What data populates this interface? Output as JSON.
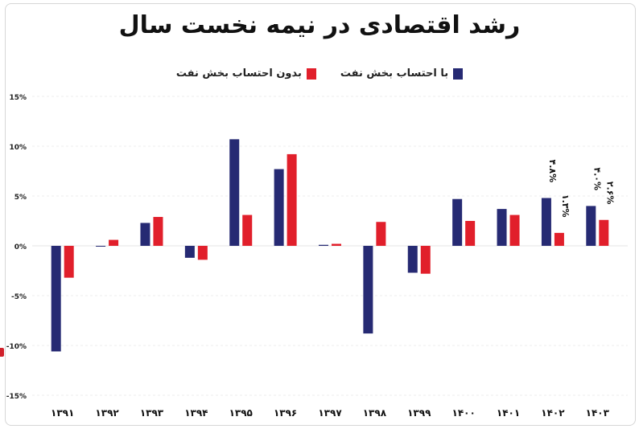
{
  "title": "رشد اقتصادی در نیمه نخست سال",
  "legend": [
    {
      "label": "با احتساب بخش نفت",
      "color": "#262a73"
    },
    {
      "label": "بدون احتساب بخش نفت",
      "color": "#e11f2b"
    }
  ],
  "chart_data": {
    "type": "bar",
    "title": "رشد اقتصادی در نیمه نخست سال",
    "categories": [
      "۱۳۹۱",
      "۱۳۹۲",
      "۱۳۹۳",
      "۱۳۹۴",
      "۱۳۹۵",
      "۱۳۹۶",
      "۱۳۹۷",
      "۱۳۹۸",
      "۱۳۹۹",
      "۱۴۰۰",
      "۱۴۰۱",
      "۱۴۰۲",
      "۱۴۰۳"
    ],
    "series": [
      {
        "name": "با احتساب بخش نفت",
        "color": "#262a73",
        "values": [
          -10.6,
          0.0,
          2.3,
          -1.2,
          10.7,
          7.7,
          0.1,
          -8.8,
          -2.7,
          4.7,
          3.7,
          4.8,
          4.0
        ],
        "labels": [
          "",
          "",
          "",
          "",
          "",
          "",
          "",
          "",
          "",
          "",
          "",
          "۴.۸%",
          "۴.۰%"
        ]
      },
      {
        "name": "بدون احتساب بخش نفت",
        "color": "#e11f2b",
        "values": [
          -3.2,
          0.6,
          2.9,
          -1.4,
          3.1,
          9.2,
          0.2,
          2.4,
          -2.8,
          2.5,
          3.1,
          1.3,
          2.6
        ],
        "labels": [
          "",
          "",
          "",
          "",
          "",
          "",
          "",
          "",
          "",
          "",
          "",
          "۱.۳%",
          "۲.۶%"
        ]
      }
    ],
    "yticks": [
      15,
      10,
      5,
      0,
      -5,
      -10,
      -15
    ],
    "ytick_labels": [
      "15%",
      "10%",
      "5%",
      "0%",
      "-5%",
      "-10%",
      "-15%"
    ],
    "ylim": [
      -15,
      15
    ],
    "grid": true
  }
}
